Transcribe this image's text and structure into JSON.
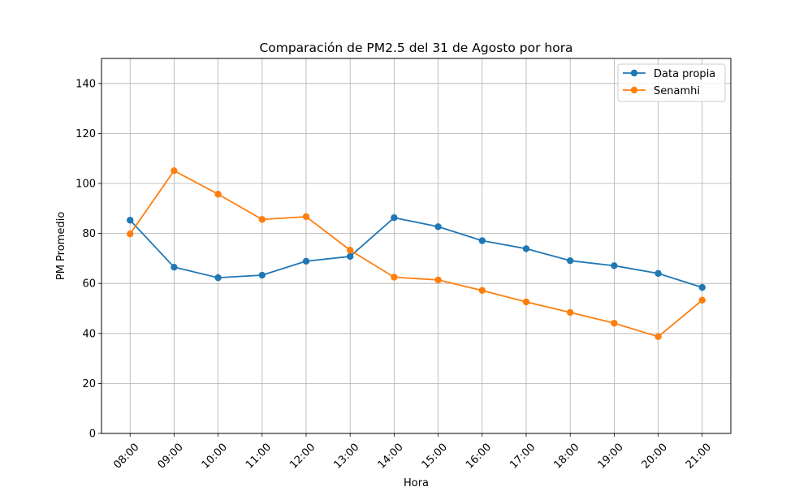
{
  "chart_data": {
    "type": "line",
    "title": "Comparación de PM2.5 del 31 de Agosto por hora",
    "xlabel": "Hora",
    "ylabel": "PM Promedio",
    "ylim": [
      0,
      150
    ],
    "yticks": [
      0,
      20,
      40,
      60,
      80,
      100,
      120,
      140
    ],
    "grid": true,
    "legend_position": "top-right",
    "categories": [
      "08:00",
      "09:00",
      "10:00",
      "11:00",
      "12:00",
      "13:00",
      "14:00",
      "15:00",
      "16:00",
      "17:00",
      "18:00",
      "19:00",
      "20:00",
      "21:00"
    ],
    "series": [
      {
        "name": "Data propia",
        "color": "#1f77b4",
        "values": [
          85.3,
          66.5,
          62.3,
          63.3,
          68.9,
          70.8,
          86.3,
          82.7,
          77.1,
          73.9,
          69.1,
          67.1,
          64.0,
          58.4
        ]
      },
      {
        "name": "Senamhi",
        "color": "#ff7f0e",
        "values": [
          79.8,
          105.1,
          95.7,
          85.6,
          86.7,
          73.3,
          62.5,
          61.4,
          57.2,
          52.6,
          48.4,
          44.1,
          38.7,
          53.3
        ]
      }
    ]
  }
}
